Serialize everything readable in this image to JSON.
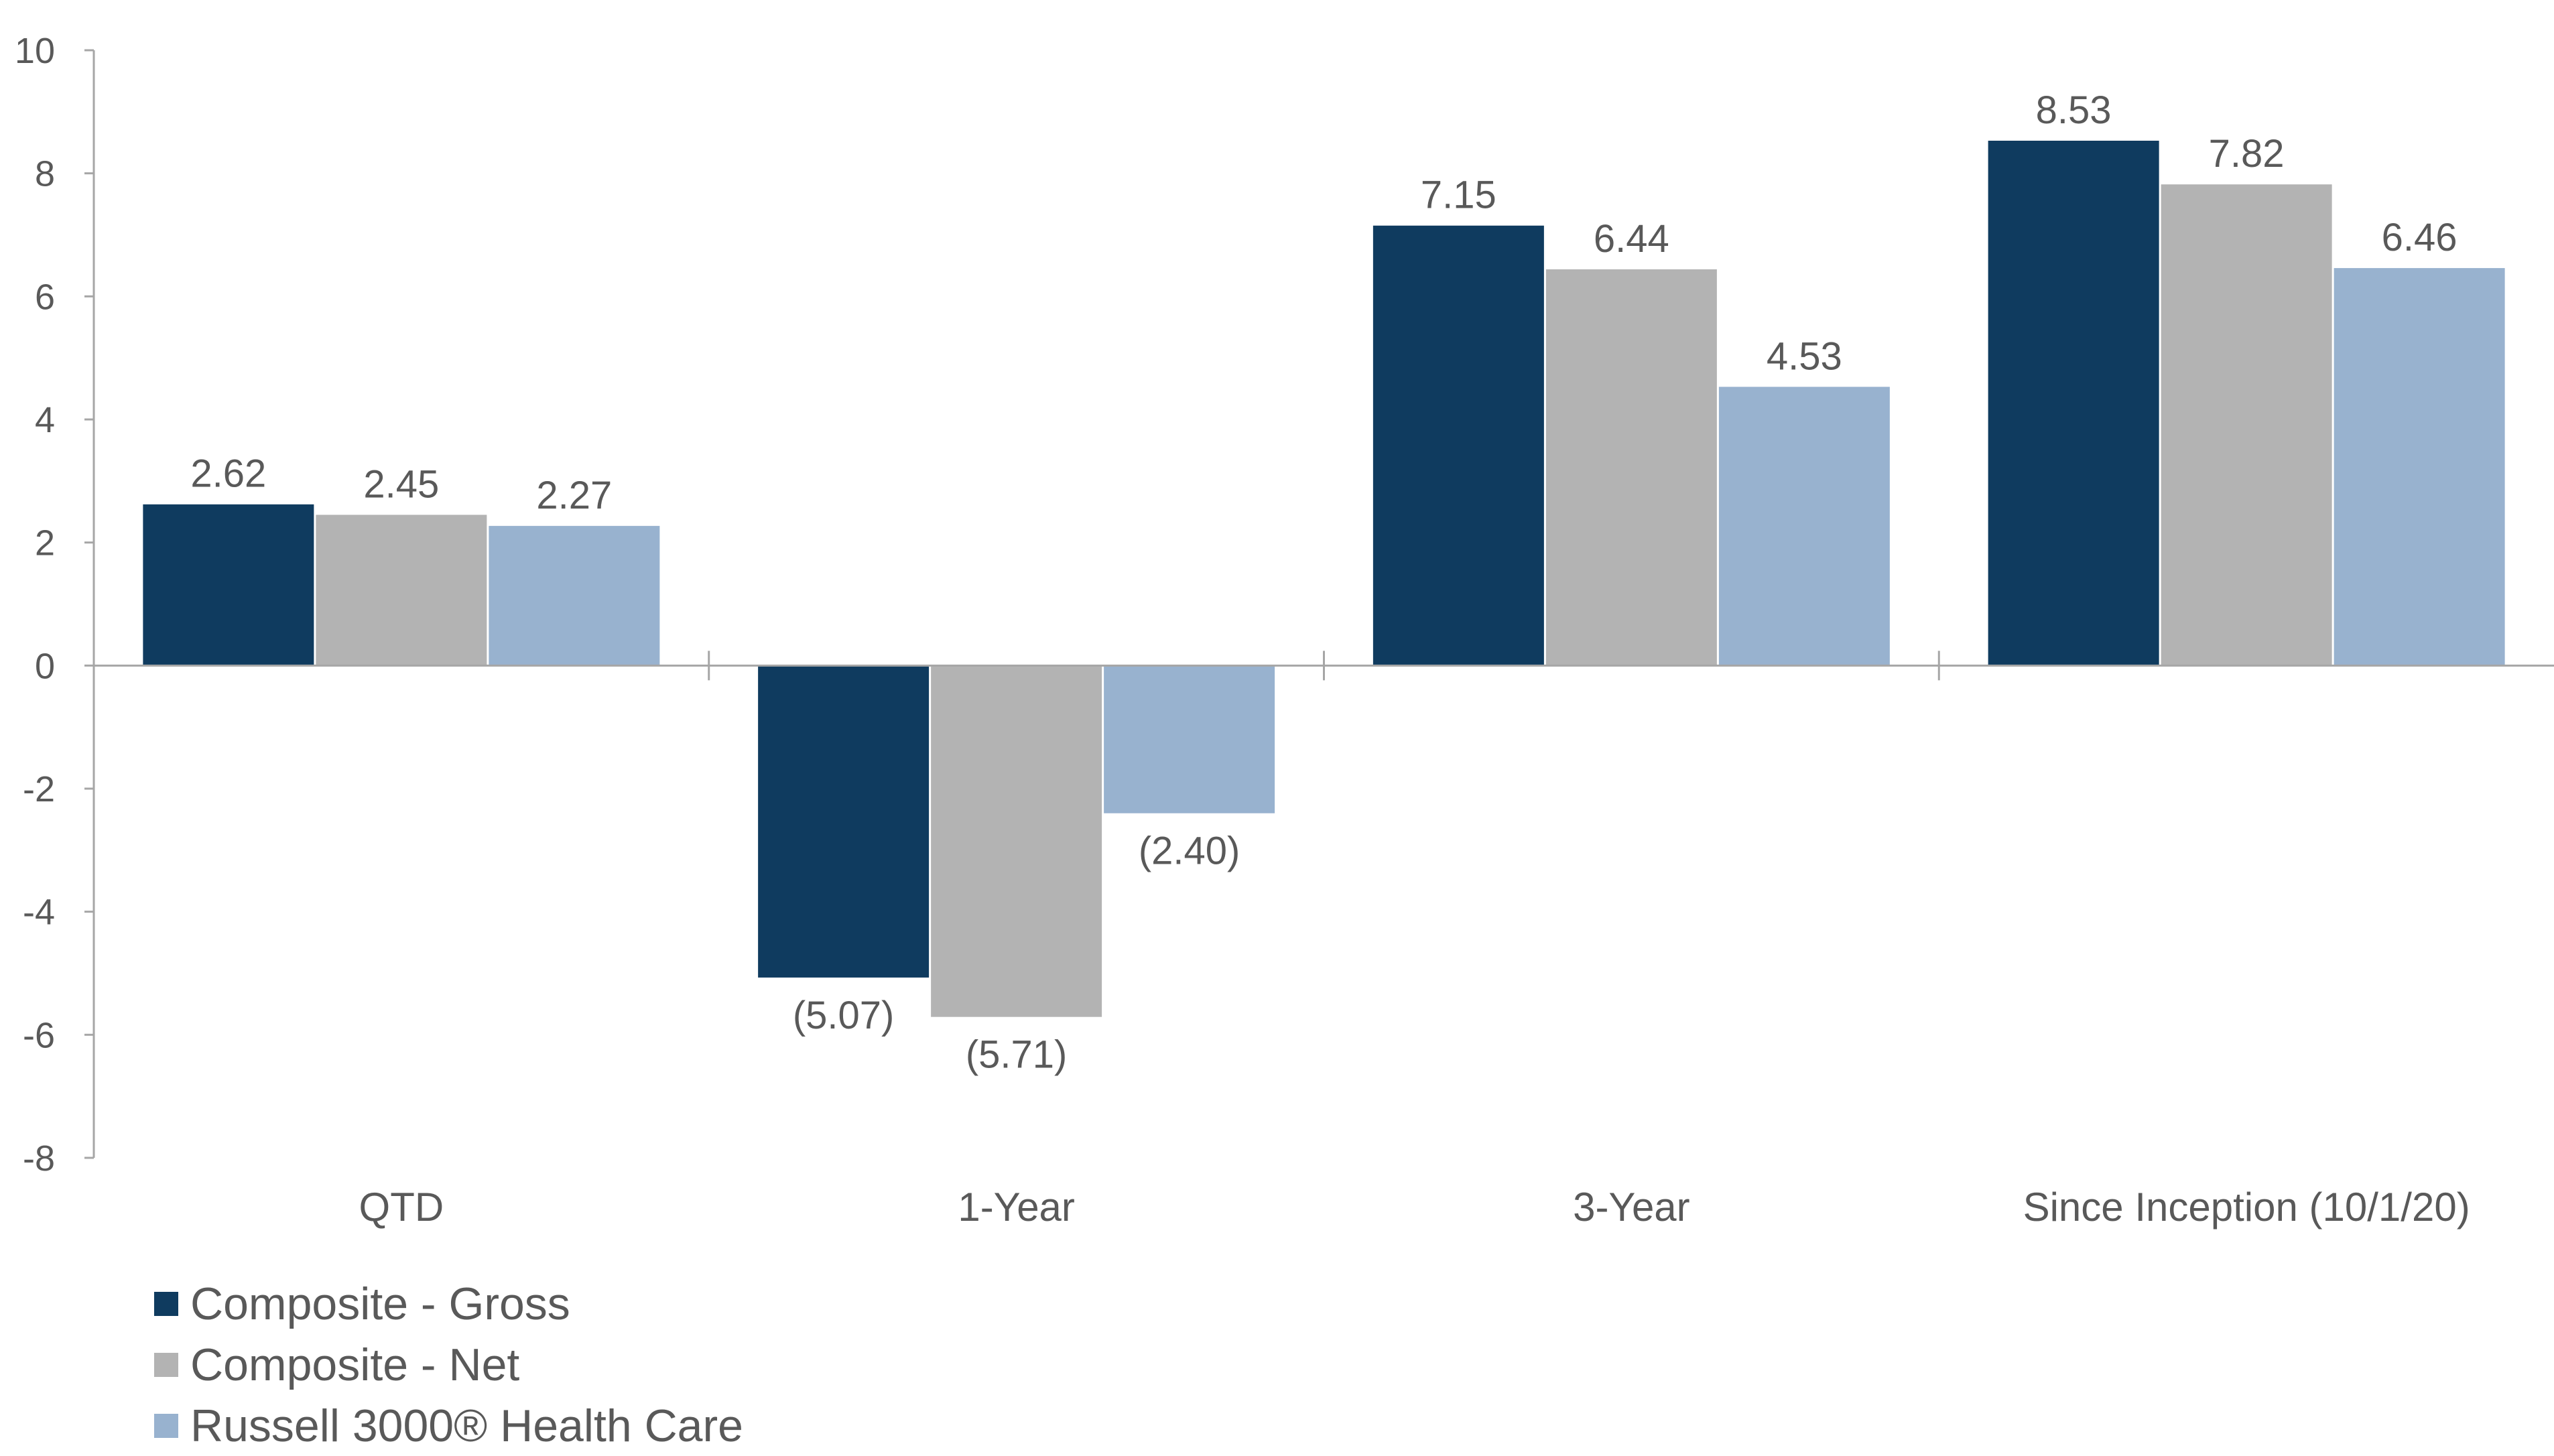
{
  "chart_data": {
    "type": "bar",
    "categories": [
      "QTD",
      "1-Year",
      "3-Year",
      "Since Inception (10/1/20)"
    ],
    "series": [
      {
        "name": "Composite - Gross",
        "color": "#0f3b5f",
        "values": [
          2.62,
          -5.07,
          7.15,
          8.53
        ],
        "labels": [
          "2.62",
          "(5.07)",
          "7.15",
          "8.53"
        ]
      },
      {
        "name": "Composite - Net",
        "color": "#b3b3b3",
        "values": [
          2.45,
          -5.71,
          6.44,
          7.82
        ],
        "labels": [
          "2.45",
          "(5.71)",
          "6.44",
          "7.82"
        ]
      },
      {
        "name": "Russell 3000® Health Care",
        "color": "#98b2cf",
        "values": [
          2.27,
          -2.4,
          4.53,
          6.46
        ],
        "labels": [
          "2.27",
          "(2.40)",
          "4.53",
          "6.46"
        ]
      }
    ],
    "ylim": [
      -8,
      10
    ],
    "yticks": [
      "10",
      "8",
      "6",
      "4",
      "2",
      "0",
      "-2",
      "-4",
      "-6",
      "-8"
    ],
    "legend_position": "bottom-left",
    "grid": false
  }
}
